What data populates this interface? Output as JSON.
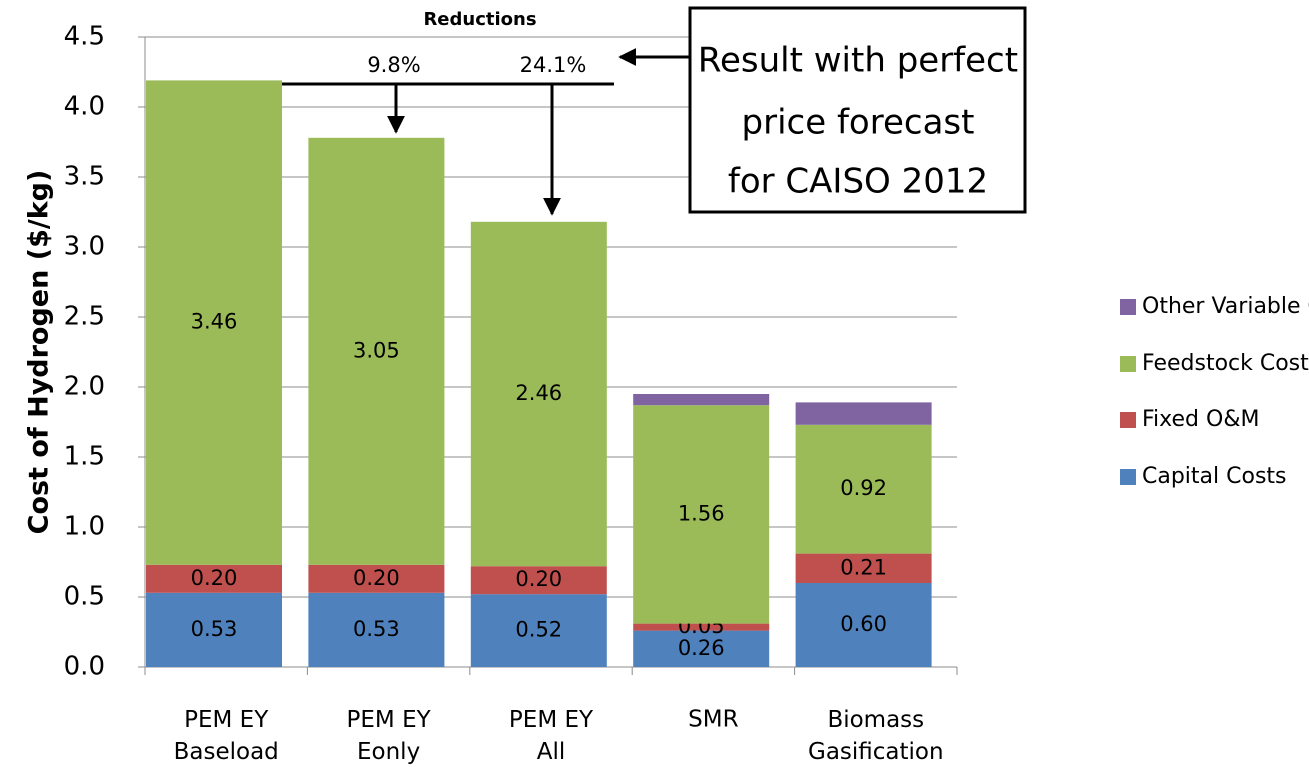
{
  "chart_data": {
    "type": "stacked_bar",
    "ylabel": "Cost of Hydrogen ($/kg)",
    "categories": [
      "PEM EY\nBaseload",
      "PEM EY\nEonly",
      "PEM EY\nAll",
      "SMR",
      "Biomass\nGasification"
    ],
    "series": [
      {
        "name": "Capital Costs",
        "color": "#4f81bd",
        "values": [
          0.53,
          0.53,
          0.52,
          0.26,
          0.6
        ],
        "value_labels": [
          "0.53",
          "0.53",
          "0.52",
          "0.26",
          "0.60"
        ]
      },
      {
        "name": "Fixed O&M",
        "color": "#c0504d",
        "values": [
          0.2,
          0.2,
          0.2,
          0.05,
          0.21
        ],
        "value_labels": [
          "0.20",
          "0.20",
          "0.20",
          "0.05",
          "0.21"
        ]
      },
      {
        "name": "Feedstock Costs",
        "color": "#9bbb59",
        "values": [
          3.46,
          3.05,
          2.46,
          1.56,
          0.92
        ],
        "value_labels": [
          "3.46",
          "3.05",
          "2.46",
          "1.56",
          "0.92"
        ]
      },
      {
        "name": "Other Variable Costs",
        "color": "#8064a2",
        "values": [
          0,
          0,
          0,
          0.08,
          0.16
        ]
      }
    ],
    "ylim": [
      0,
      4.5
    ],
    "yticks": [
      {
        "value": 0,
        "label": "0.0"
      },
      0.5,
      {
        "value": 1,
        "label": "1.0"
      },
      1.5,
      {
        "value": 2,
        "label": "2.0"
      },
      2.5,
      {
        "value": 3,
        "label": "3.0"
      },
      3.5,
      {
        "value": 4,
        "label": "4.0"
      },
      4.5
    ],
    "grid": true,
    "legend": "right",
    "annotations": {
      "reductions_title": "Reductions",
      "reduction_labels": [
        "9.8%",
        "24.1%"
      ],
      "callout": [
        "Result with perfect",
        "price forecast",
        "for CAISO 2012"
      ]
    }
  }
}
